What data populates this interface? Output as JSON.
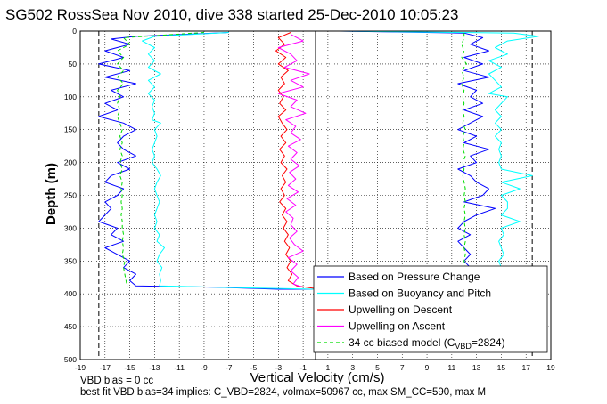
{
  "chart_data": {
    "type": "line",
    "title": "SG502 RossSea Nov 2010, dive 338 started 25-Dec-2010 10:05:23",
    "xlabel": "Vertical Velocity (cm/s)",
    "ylabel": "Depth (m)",
    "xlim": [
      -19,
      19
    ],
    "ylim": [
      500,
      0
    ],
    "y_reversed": true,
    "grid": true,
    "legend_position": "bottom-right",
    "xticks": [
      -19,
      -17,
      -15,
      -13,
      -11,
      -9,
      -7,
      -5,
      -3,
      -1,
      1,
      3,
      5,
      7,
      9,
      11,
      13,
      15,
      17,
      19
    ],
    "yticks": [
      0,
      50,
      100,
      150,
      200,
      250,
      300,
      350,
      400,
      450,
      500
    ],
    "reference_lines_x": [
      -17.5,
      17.5
    ],
    "center_divider_x": 0,
    "legend": [
      {
        "label": "Based on Pressure Change",
        "color": "#0000ff",
        "dashed": false
      },
      {
        "label": "Based on Buoyancy and Pitch",
        "color": "#00ffff",
        "dashed": false
      },
      {
        "label": "Upwelling on Descent",
        "color": "#ff0000",
        "dashed": false
      },
      {
        "label": "Upwelling on Ascent",
        "color": "#ff00ff",
        "dashed": false
      },
      {
        "label": "34 cc biased model (C",
        "sub": "VBD",
        "suffix": "=2824)",
        "color": "#00dd00",
        "dashed": true
      }
    ],
    "series": [
      {
        "name": "Based on Pressure Change",
        "color": "#0000ff",
        "dashed": false,
        "y": [
          2,
          8,
          12,
          20,
          30,
          40,
          50,
          60,
          70,
          80,
          90,
          100,
          110,
          120,
          130,
          140,
          150,
          160,
          170,
          180,
          190,
          200,
          210,
          220,
          230,
          240,
          250,
          260,
          270,
          280,
          290,
          300,
          310,
          320,
          330,
          340,
          350,
          360,
          370,
          380,
          388,
          390,
          393,
          393
        ],
        "x": [
          -7,
          -14.5,
          -16.5,
          -15,
          -17,
          -15.5,
          -17.5,
          -15,
          -17,
          -14.5,
          -16.5,
          -15.5,
          -17,
          -16,
          -17.5,
          -15.5,
          -14.5,
          -15.5,
          -16,
          -15.5,
          -14.5,
          -16,
          -15,
          -16.5,
          -17,
          -15.5,
          -16,
          -17,
          -16.5,
          -17,
          -17.5,
          -16,
          -16.5,
          -15.5,
          -17,
          -16,
          -15,
          -15.5,
          -14.5,
          -15,
          -14.5,
          -8,
          -3,
          0
        ]
      },
      {
        "name": "Based on Buoyancy and Pitch",
        "color": "#00ffff",
        "dashed": false,
        "y": [
          2,
          8,
          15,
          25,
          35,
          45,
          55,
          65,
          75,
          85,
          95,
          105,
          115,
          125,
          135,
          140,
          150,
          160,
          170,
          180,
          190,
          200,
          210,
          220,
          230,
          240,
          250,
          260,
          270,
          280,
          290,
          300,
          310,
          320,
          330,
          340,
          350,
          360,
          370,
          380,
          388,
          390,
          393
        ],
        "x": [
          -7,
          -13,
          -14,
          -13,
          -13.5,
          -13,
          -13.5,
          -12.5,
          -13.5,
          -13,
          -13.5,
          -13,
          -13.2,
          -13,
          -13.2,
          -12.5,
          -13,
          -12.8,
          -13,
          -13.2,
          -13,
          -13.2,
          -12.8,
          -12.5,
          -12.8,
          -13,
          -12.8,
          -12.6,
          -12.8,
          -13,
          -12.8,
          -13,
          -12.6,
          -12.8,
          -12.2,
          -12.6,
          -12.8,
          -12.4,
          -12.6,
          -12.5,
          -12.6,
          -8,
          0
        ]
      },
      {
        "name": "34 cc biased model",
        "color": "#00dd00",
        "dashed": true,
        "y": [
          2,
          10,
          20,
          30,
          40,
          50,
          60,
          70,
          80,
          90,
          100,
          110,
          120,
          130,
          140,
          150,
          160,
          170,
          180,
          190,
          200,
          210,
          220,
          230,
          240,
          250,
          260,
          270,
          280,
          290,
          300,
          310,
          320,
          330,
          340,
          350,
          360,
          370,
          380,
          390
        ],
        "x": [
          -9,
          -15.5,
          -15,
          -16,
          -15.5,
          -16,
          -15.5,
          -16,
          -15.5,
          -16,
          -15.8,
          -16,
          -15.8,
          -16,
          -15.8,
          -15.6,
          -15.8,
          -15.6,
          -15.8,
          -15.6,
          -15.8,
          -15.6,
          -15.8,
          -15.6,
          -15.7,
          -15.6,
          -15.7,
          -15.6,
          -15.7,
          -15.6,
          -15.6,
          -15.5,
          -15.6,
          -15.5,
          -15.6,
          -15.4,
          -15.5,
          -15.4,
          -15.3,
          -15.2
        ]
      },
      {
        "name": "Upwelling on Descent",
        "color": "#ff0000",
        "dashed": false,
        "y": [
          2,
          10,
          20,
          30,
          40,
          50,
          60,
          70,
          80,
          90,
          100,
          110,
          120,
          130,
          140,
          150,
          160,
          170,
          180,
          190,
          200,
          210,
          220,
          230,
          240,
          250,
          260,
          270,
          280,
          290,
          300,
          310,
          320,
          330,
          340,
          350,
          360,
          370,
          380,
          388,
          392
        ],
        "x": [
          -2,
          -3,
          -2.5,
          -3.2,
          -2.4,
          -3,
          -2.2,
          -2.8,
          -2.5,
          -3,
          -2.6,
          -2.9,
          -2.4,
          -3,
          -2.7,
          -2.3,
          -2.8,
          -2.4,
          -2.9,
          -2.5,
          -2.8,
          -2.3,
          -2.7,
          -2.4,
          -2.8,
          -2.5,
          -2.9,
          -2.4,
          -2.7,
          -2.3,
          -2.6,
          -2.2,
          -2.5,
          -2.1,
          -2.4,
          -2,
          -2.3,
          -1.9,
          -2.2,
          -1.5,
          0
        ]
      },
      {
        "name": "Upwelling on Ascent",
        "color": "#ff00ff",
        "dashed": false,
        "y": [
          5,
          15,
          25,
          35,
          45,
          55,
          65,
          75,
          85,
          95,
          105,
          115,
          125,
          135,
          145,
          155,
          165,
          175,
          185,
          195,
          205,
          215,
          225,
          235,
          245,
          255,
          265,
          275,
          285,
          295,
          305,
          315,
          325,
          335,
          345,
          355,
          365,
          375,
          385,
          390
        ],
        "x": [
          -2,
          -1,
          -3,
          -2,
          -1.5,
          -2.5,
          -0.5,
          -2,
          -1,
          -3,
          -1.5,
          -2,
          -0.8,
          -2.4,
          -1.6,
          -2,
          -1.2,
          -2.2,
          -1.5,
          -2,
          -1.3,
          -2.1,
          -1.6,
          -2.2,
          -1.4,
          -2.3,
          -1.6,
          -2.4,
          -1.8,
          -2,
          -1.5,
          -2.1,
          -1.7,
          -1,
          -2.2,
          -1.5,
          -2,
          -1.4,
          -1.8,
          -1
        ]
      },
      {
        "name": "Based on Pressure Change (ascent)",
        "color": "#0000ff",
        "dashed": false,
        "y": [
          0,
          3,
          10,
          20,
          30,
          40,
          50,
          60,
          70,
          80,
          90,
          100,
          110,
          120,
          130,
          140,
          150,
          160,
          170,
          180,
          190,
          200,
          210,
          220,
          230,
          240,
          250,
          260,
          270,
          280,
          290,
          300,
          310,
          320,
          330,
          340,
          350,
          360
        ],
        "x": [
          2,
          12,
          13.5,
          12.5,
          14,
          12,
          13.5,
          12,
          14,
          11.5,
          13,
          12.5,
          13.5,
          12,
          13.5,
          12.5,
          11.5,
          13,
          12,
          14,
          12.5,
          13,
          11.5,
          12.5,
          13,
          14,
          13.5,
          12,
          14.5,
          13,
          12,
          11.5,
          12.5,
          11.5,
          12,
          12.5,
          12,
          12.5
        ]
      },
      {
        "name": "Based on Buoyancy and Pitch (ascent)",
        "color": "#00ffff",
        "dashed": false,
        "y": [
          0,
          3,
          8,
          15,
          25,
          35,
          45,
          55,
          65,
          75,
          85,
          95,
          100,
          110,
          120,
          130,
          140,
          150,
          160,
          170,
          180,
          190,
          200,
          210,
          220,
          230,
          240,
          250,
          260,
          270,
          280,
          290,
          300,
          310,
          320,
          330,
          340,
          350,
          360
        ],
        "x": [
          2,
          16,
          18,
          15.5,
          14.5,
          15.5,
          14,
          15,
          14,
          14.5,
          15,
          14,
          15.5,
          15,
          14.5,
          15,
          14.5,
          15,
          14.5,
          15,
          14.8,
          15,
          14.8,
          15,
          17.5,
          15,
          16.5,
          15,
          15.5,
          15.5,
          15,
          16.5,
          15,
          15.2,
          14.8,
          15,
          15.2,
          14.8,
          15
        ]
      },
      {
        "name": "34 cc biased model (ascent)",
        "color": "#00dd00",
        "dashed": true,
        "y": [
          3,
          10,
          20,
          30,
          40,
          50,
          60,
          70,
          80,
          90,
          100,
          110,
          120,
          130,
          140,
          150,
          160,
          170,
          180,
          190,
          200,
          210,
          220,
          230,
          240,
          250,
          260,
          270,
          280,
          290,
          300,
          310,
          320,
          330,
          340,
          350,
          360
        ],
        "x": [
          12,
          12,
          11.8,
          12,
          11.8,
          12.2,
          11.8,
          12,
          11.8,
          12,
          11.9,
          12,
          11.9,
          12,
          11.9,
          12.1,
          11.9,
          12,
          11.9,
          12.1,
          11.9,
          12,
          11.9,
          12,
          12.1,
          12,
          12.1,
          12,
          12.1,
          12,
          12.1,
          12,
          12.1,
          12,
          12.1,
          12,
          12.1
        ]
      }
    ]
  },
  "footer": {
    "line1": "VBD bias = 0 cc",
    "line2": "best fit VBD bias=34 implies: C_VBD=2824, volmax=50967 cc, max SM_CC=590, max M"
  }
}
